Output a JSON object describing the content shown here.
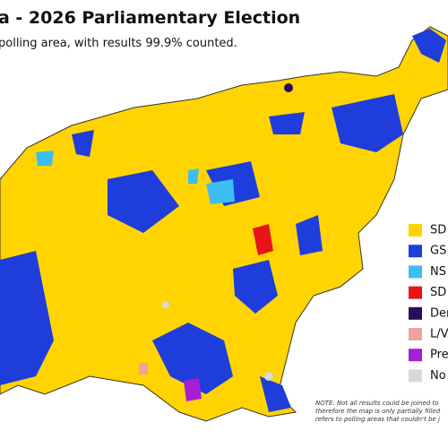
{
  "header": {
    "title": "a - 2026 Parliamentary Election",
    "subtitle": "polling area, with results 99.9% counted."
  },
  "legend": [
    {
      "label": "SD",
      "color": "#ffd400"
    },
    {
      "label": "GS",
      "color": "#1e3ddb"
    },
    {
      "label": "NS",
      "color": "#3cbff0"
    },
    {
      "label": "SD",
      "color": "#e8141a"
    },
    {
      "label": "Dem",
      "color": "#2b0b5c"
    },
    {
      "label": "L/V",
      "color": "#f0a0a0"
    },
    {
      "label": "Pre",
      "color": "#a41fd6"
    },
    {
      "label": "No",
      "color": "#d9d9d9"
    }
  ],
  "note": [
    "NOTE: Not all results could be joined to",
    "therefore the map is only partially filled",
    "refers to polling areas that couldn't be j"
  ]
}
